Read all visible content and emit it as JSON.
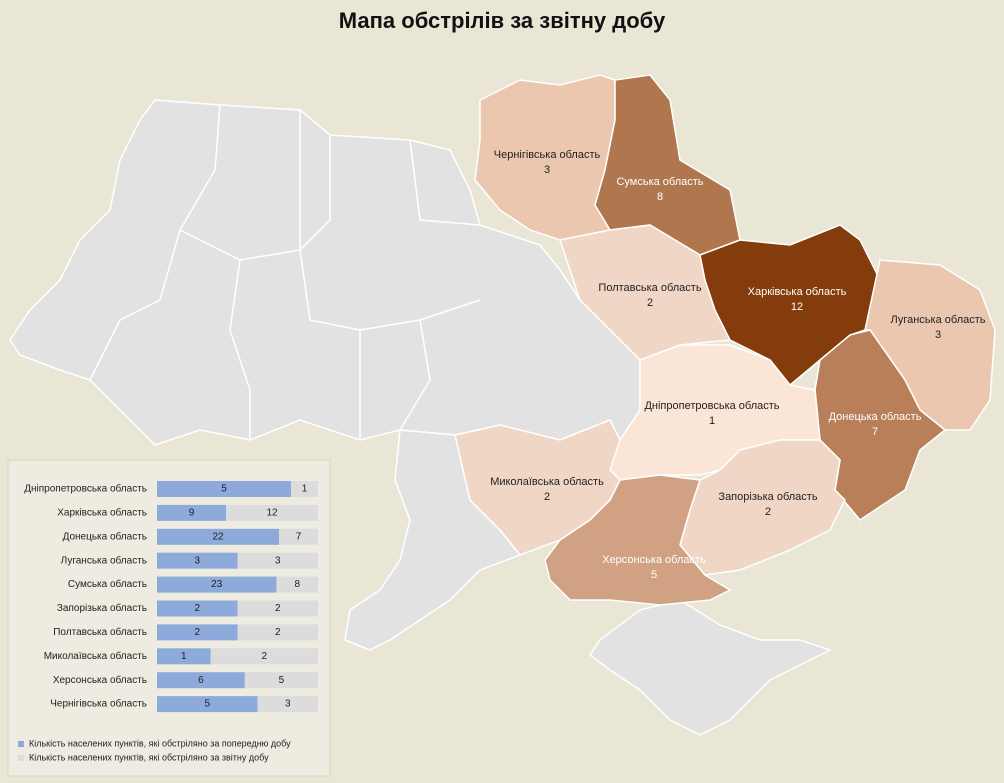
{
  "title": "Мапа обстрілів за звітну добу",
  "map": {
    "regions": [
      {
        "name": "Чернігівська область",
        "value": 3,
        "color": "#ebc7b0"
      },
      {
        "name": "Сумська область",
        "value": 8,
        "color": "#b0774f"
      },
      {
        "name": "Полтавська область",
        "value": 2,
        "color": "#f0d7c5"
      },
      {
        "name": "Харківська область",
        "value": 12,
        "color": "#843c0c"
      },
      {
        "name": "Луганська область",
        "value": 3,
        "color": "#ebc7b0"
      },
      {
        "name": "Донецька область",
        "value": 7,
        "color": "#b97f58"
      },
      {
        "name": "Дніпропетровська область",
        "value": 1,
        "color": "#fbe5d6"
      },
      {
        "name": "Миколаївська область",
        "value": 2,
        "color": "#f0d7c5"
      },
      {
        "name": "Запорізька область",
        "value": 2,
        "color": "#f0d7c5"
      },
      {
        "name": "Херсонська область",
        "value": 5,
        "color": "#d0a283"
      }
    ]
  },
  "chart_data": {
    "type": "bar",
    "orientation": "horizontal",
    "stacking": "percent",
    "categories": [
      "Дніпропетровська область",
      "Харківська область",
      "Донецька область",
      "Луганська область",
      "Сумська область",
      "Запорізька область",
      "Полтавська область",
      "Миколаївська область",
      "Херсонська область",
      "Чернігівська область"
    ],
    "series": [
      {
        "name": "Кількість населених пунктів, які обстріляно за попередню добу",
        "color": "#8eaadb",
        "values": [
          5,
          9,
          22,
          3,
          23,
          2,
          2,
          1,
          6,
          5
        ]
      },
      {
        "name": "Кількість населених пунктів, які обстріляно за звітну добу",
        "color": "#dcdcdc",
        "values": [
          1,
          12,
          7,
          3,
          8,
          2,
          2,
          2,
          5,
          3
        ]
      }
    ]
  }
}
